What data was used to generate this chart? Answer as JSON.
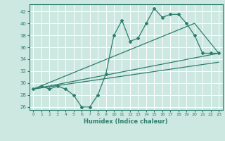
{
  "title": "",
  "xlabel": "Humidex (Indice chaleur)",
  "ylabel": "",
  "bg_color": "#cce8e0",
  "grid_color": "#ffffff",
  "line_color": "#2e7d6e",
  "xlim": [
    -0.5,
    23.5
  ],
  "ylim": [
    25.5,
    43.2
  ],
  "xticks": [
    0,
    1,
    2,
    3,
    4,
    5,
    6,
    7,
    8,
    9,
    10,
    11,
    12,
    13,
    14,
    15,
    16,
    17,
    18,
    19,
    20,
    21,
    22,
    23
  ],
  "yticks": [
    26,
    28,
    30,
    32,
    34,
    36,
    38,
    40,
    42
  ],
  "series1_x": [
    0,
    1,
    2,
    3,
    4,
    5,
    6,
    7,
    8,
    9,
    10,
    11,
    12,
    13,
    14,
    15,
    16,
    17,
    18,
    19,
    20,
    21,
    22,
    23
  ],
  "series1_y": [
    29,
    29.5,
    29,
    29.5,
    29,
    28,
    26,
    26,
    28,
    31.5,
    38,
    40.5,
    37,
    37.5,
    40,
    42.5,
    41,
    41.5,
    41.5,
    40,
    38,
    35,
    35,
    35
  ],
  "series2_x": [
    0,
    23
  ],
  "series2_y": [
    29,
    35
  ],
  "series3_x": [
    0,
    20,
    23
  ],
  "series3_y": [
    29,
    40,
    35
  ],
  "series4_x": [
    0,
    23
  ],
  "series4_y": [
    29,
    33.5
  ]
}
